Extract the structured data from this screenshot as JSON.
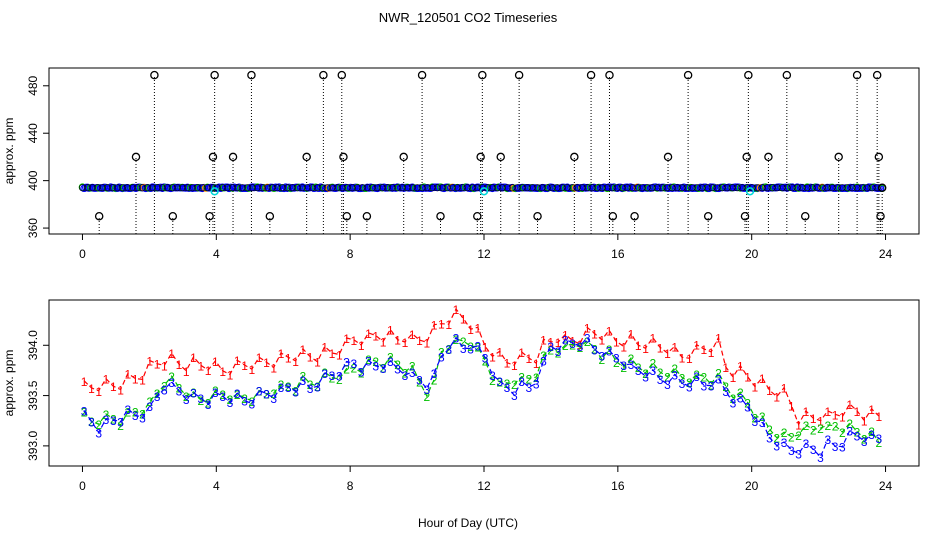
{
  "title": "NWR_120501  CO2 Timeseries",
  "colors": {
    "black": "#000000",
    "red": "#ff0000",
    "green": "#00c000",
    "blue": "#0000ff",
    "cyan": "#00d8d8",
    "orange": "#ff8c00"
  },
  "chart_data": [
    {
      "type": "scatter",
      "name": "top-panel",
      "xlabel": "",
      "ylabel": "approx. ppm",
      "xlim": [
        -1,
        25
      ],
      "ylim": [
        355,
        495
      ],
      "xticks": [
        0,
        4,
        8,
        12,
        16,
        20,
        24
      ],
      "yticks": [
        360,
        400,
        440,
        480
      ],
      "baseline": 394,
      "outliers": [
        [
          0.5,
          370
        ],
        [
          1.6,
          420
        ],
        [
          2.15,
          489
        ],
        [
          2.7,
          370
        ],
        [
          3.8,
          370
        ],
        [
          3.9,
          420
        ],
        [
          3.95,
          489
        ],
        [
          4.5,
          420
        ],
        [
          5.05,
          489
        ],
        [
          5.6,
          370
        ],
        [
          6.7,
          420
        ],
        [
          7.2,
          489
        ],
        [
          7.75,
          489
        ],
        [
          7.8,
          420
        ],
        [
          7.9,
          370
        ],
        [
          8.5,
          370
        ],
        [
          9.6,
          420
        ],
        [
          10.15,
          489
        ],
        [
          10.7,
          370
        ],
        [
          11.8,
          370
        ],
        [
          11.9,
          420
        ],
        [
          11.95,
          489
        ],
        [
          12.5,
          420
        ],
        [
          13.05,
          489
        ],
        [
          13.6,
          370
        ],
        [
          14.7,
          420
        ],
        [
          15.2,
          489
        ],
        [
          15.75,
          489
        ],
        [
          15.85,
          370
        ],
        [
          16.5,
          370
        ],
        [
          17.5,
          420
        ],
        [
          18.1,
          489
        ],
        [
          18.7,
          370
        ],
        [
          19.8,
          370
        ],
        [
          19.85,
          420
        ],
        [
          19.9,
          489
        ],
        [
          20.5,
          420
        ],
        [
          21.05,
          489
        ],
        [
          21.6,
          370
        ],
        [
          22.6,
          420
        ],
        [
          23.15,
          489
        ],
        [
          23.75,
          489
        ],
        [
          23.8,
          420
        ],
        [
          23.85,
          370
        ],
        [
          23.9,
          394
        ]
      ],
      "cyan_points": [
        [
          3.95,
          391
        ],
        [
          12.0,
          391
        ],
        [
          19.95,
          391
        ]
      ]
    },
    {
      "type": "line",
      "name": "bottom-panel",
      "xlabel": "Hour of Day (UTC)",
      "ylabel": "approx. ppm",
      "xlim": [
        -1,
        25
      ],
      "ylim": [
        392.8,
        394.45
      ],
      "xticks": [
        0,
        4,
        8,
        12,
        16,
        20,
        24
      ],
      "yticks": [
        393.0,
        393.5,
        394.0
      ],
      "ytick_labels": [
        "393.0",
        "393.5",
        "394.0"
      ],
      "series": [
        {
          "name": "1",
          "color": "#ff0000",
          "knots": [
            [
              0,
              393.55
            ],
            [
              0.3,
              393.6
            ],
            [
              1,
              393.6
            ],
            [
              1.5,
              393.65
            ],
            [
              2.3,
              393.85
            ],
            [
              3.5,
              393.8
            ],
            [
              4.3,
              393.75
            ],
            [
              5.5,
              393.85
            ],
            [
              7,
              393.9
            ],
            [
              7.5,
              393.95
            ],
            [
              8,
              394.05
            ],
            [
              9,
              394.1
            ],
            [
              10,
              394.05
            ],
            [
              10.5,
              394.15
            ],
            [
              11,
              394.3
            ],
            [
              11.5,
              394.25
            ],
            [
              12,
              394.0
            ],
            [
              12.5,
              393.85
            ],
            [
              13.5,
              393.85
            ],
            [
              14,
              394.05
            ],
            [
              15.5,
              394.1
            ],
            [
              16,
              394.05
            ],
            [
              17,
              394.0
            ],
            [
              18,
              393.9
            ],
            [
              19,
              394.0
            ],
            [
              19.3,
              393.75
            ],
            [
              20,
              393.65
            ],
            [
              21,
              393.5
            ],
            [
              21.5,
              393.25
            ],
            [
              22.5,
              393.3
            ],
            [
              23,
              393.35
            ],
            [
              23.8,
              393.3
            ]
          ]
        },
        {
          "name": "2",
          "color": "#00c000",
          "knots": [
            [
              0,
              393.3
            ],
            [
              0.5,
              393.25
            ],
            [
              1,
              393.25
            ],
            [
              2,
              393.4
            ],
            [
              2.5,
              393.7
            ],
            [
              3,
              393.55
            ],
            [
              3.5,
              393.45
            ],
            [
              4,
              393.5
            ],
            [
              5,
              393.45
            ],
            [
              6,
              393.6
            ],
            [
              7,
              393.65
            ],
            [
              8,
              393.75
            ],
            [
              9,
              393.85
            ],
            [
              10,
              393.7
            ],
            [
              10.4,
              393.5
            ],
            [
              10.8,
              394.0
            ],
            [
              11.5,
              394.05
            ],
            [
              12,
              393.85
            ],
            [
              12.5,
              393.6
            ],
            [
              13.5,
              393.7
            ],
            [
              14,
              393.95
            ],
            [
              15,
              394.0
            ],
            [
              16,
              393.85
            ],
            [
              17,
              393.75
            ],
            [
              18,
              393.7
            ],
            [
              19,
              393.65
            ],
            [
              20,
              393.4
            ],
            [
              20.5,
              393.15
            ],
            [
              21,
              393.1
            ],
            [
              22,
              393.2
            ],
            [
              23,
              393.15
            ],
            [
              23.8,
              393.05
            ]
          ]
        },
        {
          "name": "3",
          "color": "#0000ff",
          "knots": [
            [
              0,
              393.3
            ],
            [
              0.5,
              393.2
            ],
            [
              1,
              393.3
            ],
            [
              2,
              393.35
            ],
            [
              2.5,
              393.65
            ],
            [
              3,
              393.5
            ],
            [
              3.5,
              393.45
            ],
            [
              4,
              393.5
            ],
            [
              5,
              393.45
            ],
            [
              6,
              393.55
            ],
            [
              7,
              393.6
            ],
            [
              8,
              393.8
            ],
            [
              9,
              393.8
            ],
            [
              10,
              393.7
            ],
            [
              10.4,
              393.55
            ],
            [
              10.8,
              394.0
            ],
            [
              11.5,
              394.0
            ],
            [
              12,
              393.9
            ],
            [
              12.5,
              393.55
            ],
            [
              13.5,
              393.6
            ],
            [
              14,
              394.0
            ],
            [
              15,
              394.05
            ],
            [
              16,
              393.85
            ],
            [
              17,
              393.7
            ],
            [
              18,
              393.65
            ],
            [
              19,
              393.6
            ],
            [
              20,
              393.35
            ],
            [
              20.5,
              393.1
            ],
            [
              21,
              393.0
            ],
            [
              22,
              392.95
            ],
            [
              23,
              393.1
            ],
            [
              23.8,
              393.05
            ]
          ]
        }
      ]
    }
  ]
}
